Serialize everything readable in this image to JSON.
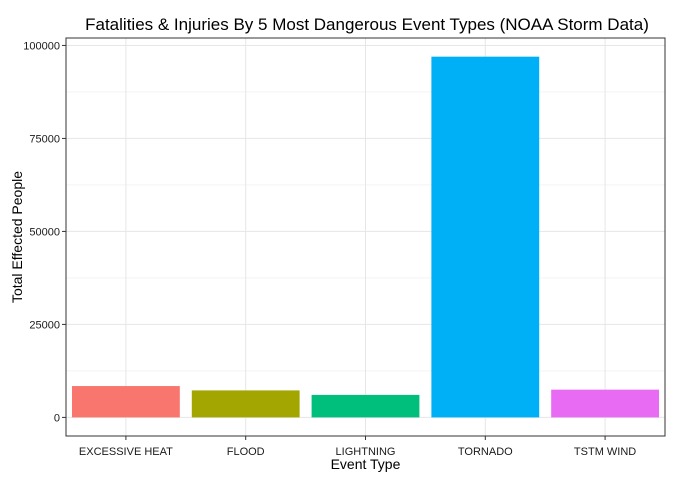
{
  "chart_data": {
    "type": "bar",
    "title": "Fatalities & Injuries By 5 Most Dangerous Event Types (NOAA Storm Data)",
    "xlabel": "Event Type",
    "ylabel": "Total Effected People",
    "categories": [
      "EXCESSIVE HEAT",
      "FLOOD",
      "LIGHTNING",
      "TORNADO",
      "TSTM WIND"
    ],
    "values": [
      8428,
      7259,
      6046,
      96979,
      7461
    ],
    "colors": [
      "#F8766D",
      "#A3A500",
      "#00BF7D",
      "#00B0F6",
      "#E76BF3"
    ],
    "yticks": [
      0,
      25000,
      50000,
      75000,
      100000
    ],
    "ytick_labels": [
      "0",
      "25000",
      "50000",
      "75000",
      "100000"
    ],
    "ylim": [
      -5000,
      102000
    ],
    "grid": true,
    "legend": "none"
  }
}
